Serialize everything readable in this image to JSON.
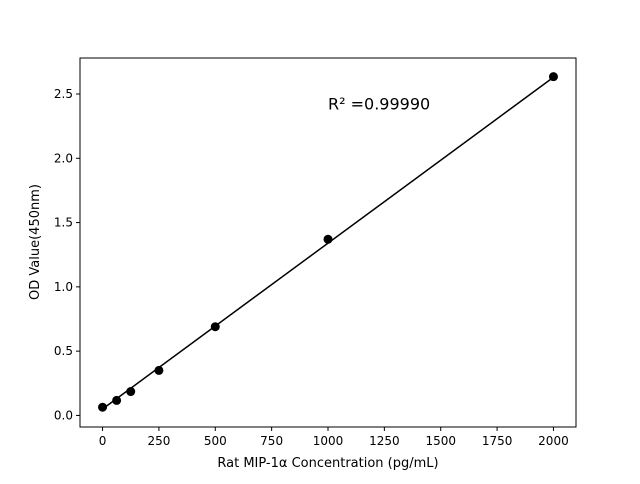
{
  "chart_data": {
    "type": "scatter",
    "title": "",
    "xlabel": "Rat MIP-1α Concentration (pg/mL)",
    "ylabel": "OD Value(450nm)",
    "xlim": [
      -100,
      2100
    ],
    "ylim": [
      -0.09,
      2.78
    ],
    "xticks": [
      0,
      250,
      500,
      750,
      1000,
      1250,
      1500,
      1750,
      2000
    ],
    "yticks": [
      0.0,
      0.5,
      1.0,
      1.5,
      2.0,
      2.5
    ],
    "xtick_labels": [
      "0",
      "250",
      "500",
      "750",
      "1000",
      "1250",
      "1500",
      "1750",
      "2000"
    ],
    "ytick_labels": [
      "0.0",
      "0.5",
      "1.0",
      "1.5",
      "2.0",
      "2.5"
    ],
    "grid": false,
    "series": [
      {
        "type": "scatter",
        "x": [
          0,
          62.5,
          125,
          250,
          500,
          1000,
          2000
        ],
        "y": [
          0.064,
          0.117,
          0.186,
          0.35,
          0.69,
          1.37,
          2.635
        ],
        "color": "#000000"
      },
      {
        "type": "line",
        "x": [
          0,
          2000
        ],
        "y": [
          0.05,
          2.63
        ],
        "color": "#000000"
      }
    ],
    "annotation": {
      "text": "R² =0.99990",
      "x": 1000,
      "y": 2.38
    }
  }
}
